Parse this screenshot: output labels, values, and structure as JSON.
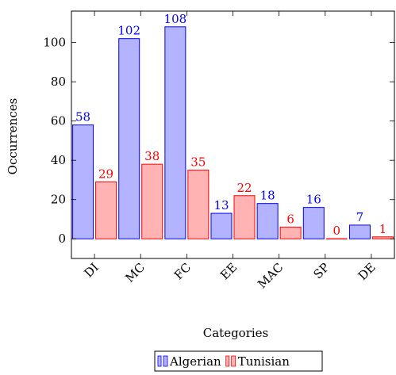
{
  "chart_data": {
    "type": "bar",
    "categories": [
      "DI",
      "MC",
      "FC",
      "EE",
      "MAC",
      "SP",
      "DE"
    ],
    "series": [
      {
        "name": "Algerian",
        "values": [
          58,
          102,
          108,
          13,
          18,
          16,
          7
        ],
        "color": "#0000ff",
        "fill": "#b3b3ff"
      },
      {
        "name": "Tunisian",
        "values": [
          29,
          38,
          35,
          22,
          6,
          0,
          1
        ],
        "color": "#ff0000",
        "fill": "#ffb3b3"
      }
    ],
    "xlabel": "Categories",
    "ylabel": "Occurrences",
    "yticks": [
      0,
      20,
      40,
      60,
      80,
      100
    ],
    "ylim": [
      -10,
      116
    ],
    "grid": false,
    "legend_position": "bottom-center"
  }
}
